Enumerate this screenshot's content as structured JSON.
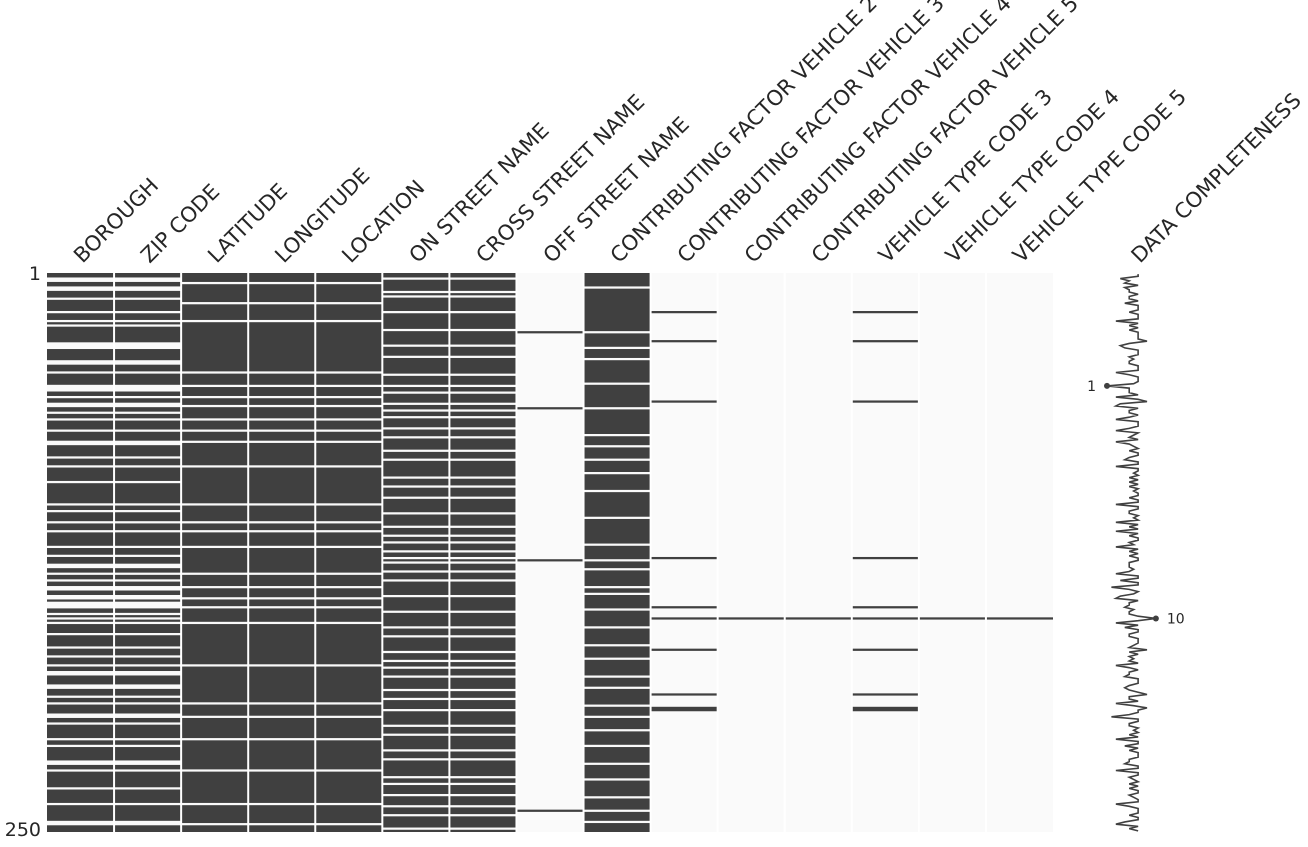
{
  "chart_data": {
    "type": "heatmap",
    "title": "",
    "row_start_label": "1",
    "row_end_label": "250",
    "n_rows": 250,
    "colors": {
      "present": "#404040",
      "missing": "#fafafa",
      "separator": "#ffffff",
      "text": "#262626"
    },
    "columns": [
      {
        "name": "BOROUGH",
        "missing_rows": [
          3,
          4,
          7,
          8,
          12,
          18,
          22,
          24,
          32,
          33,
          34,
          40,
          41,
          45,
          51,
          52,
          53,
          56,
          59,
          60,
          63,
          66,
          71,
          76,
          77,
          83,
          87,
          94,
          104,
          107,
          112,
          116,
          123,
          127,
          131,
          132,
          135,
          138,
          141,
          142,
          145,
          146,
          148,
          149,
          150,
          153,
          155,
          157,
          162,
          168,
          172,
          176,
          179,
          180,
          185,
          186,
          190,
          193,
          198,
          199,
          202,
          209,
          212,
          219,
          220,
          223,
          231,
          238,
          246,
          247
        ]
      },
      {
        "name": "ZIP CODE",
        "missing_rows": [
          3,
          4,
          7,
          8,
          12,
          18,
          22,
          24,
          32,
          33,
          34,
          40,
          41,
          45,
          51,
          52,
          53,
          56,
          59,
          60,
          63,
          66,
          71,
          76,
          77,
          83,
          87,
          94,
          104,
          107,
          112,
          116,
          123,
          127,
          131,
          132,
          135,
          138,
          141,
          142,
          145,
          146,
          148,
          149,
          150,
          153,
          155,
          157,
          162,
          168,
          172,
          176,
          179,
          180,
          185,
          186,
          190,
          193,
          198,
          199,
          202,
          209,
          212,
          219,
          220,
          223,
          231,
          238,
          246,
          247
        ]
      },
      {
        "name": "LATITUDE",
        "missing_rows": [
          5,
          14,
          22,
          45,
          51,
          56,
          60,
          66,
          71,
          76,
          87,
          104,
          112,
          116,
          123,
          135,
          141,
          146,
          150,
          157,
          176,
          193,
          199,
          209,
          223,
          238,
          247
        ]
      },
      {
        "name": "LONGITUDE",
        "missing_rows": [
          5,
          14,
          22,
          45,
          51,
          56,
          60,
          66,
          71,
          76,
          87,
          104,
          112,
          116,
          123,
          135,
          141,
          146,
          150,
          157,
          176,
          193,
          199,
          209,
          223,
          238,
          247
        ]
      },
      {
        "name": "LOCATION",
        "missing_rows": [
          5,
          14,
          22,
          45,
          51,
          56,
          60,
          66,
          71,
          76,
          87,
          104,
          112,
          116,
          123,
          135,
          141,
          146,
          150,
          157,
          176,
          193,
          199,
          209,
          223,
          238,
          247
        ]
      },
      {
        "name": "ON STREET NAME",
        "missing_rows": [
          3,
          9,
          11,
          18,
          26,
          33,
          38,
          46,
          51,
          54,
          59,
          62,
          65,
          70,
          74,
          80,
          84,
          92,
          96,
          101,
          108,
          114,
          118,
          121,
          125,
          128,
          130,
          134,
          138,
          145,
          152,
          159,
          163,
          170,
          174,
          177,
          181,
          187,
          191,
          196,
          203,
          207,
          214,
          218,
          226,
          229,
          234,
          239,
          243,
          249
        ]
      },
      {
        "name": "CROSS STREET NAME",
        "missing_rows": [
          3,
          9,
          11,
          18,
          26,
          33,
          38,
          46,
          51,
          54,
          59,
          62,
          65,
          70,
          74,
          80,
          84,
          92,
          96,
          101,
          108,
          114,
          118,
          121,
          125,
          128,
          130,
          134,
          138,
          145,
          152,
          159,
          163,
          170,
          174,
          177,
          181,
          187,
          191,
          196,
          203,
          207,
          214,
          218,
          226,
          229,
          234,
          239,
          243,
          249
        ]
      },
      {
        "name": "OFF STREET NAME",
        "present_rows": [
          27,
          61,
          129,
          241
        ]
      },
      {
        "name": "CONTRIBUTING FACTOR VEHICLE 2",
        "missing_rows": [
          7,
          27,
          34,
          39,
          50,
          61,
          73,
          78,
          84,
          90,
          98,
          110,
          122,
          129,
          133,
          141,
          144,
          151,
          159,
          167,
          173,
          181,
          186,
          194,
          199,
          205,
          212,
          220,
          227,
          235,
          241,
          246
        ]
      },
      {
        "name": "CONTRIBUTING FACTOR VEHICLE 3",
        "present_rows": [
          18,
          31,
          58,
          128,
          150,
          155,
          169,
          189,
          195,
          196
        ]
      },
      {
        "name": "CONTRIBUTING FACTOR VEHICLE 4",
        "present_rows": [
          155
        ]
      },
      {
        "name": "CONTRIBUTING FACTOR VEHICLE 5",
        "present_rows": [
          155
        ]
      },
      {
        "name": "VEHICLE TYPE CODE 3",
        "present_rows": [
          18,
          31,
          58,
          128,
          150,
          155,
          169,
          189,
          195,
          196
        ]
      },
      {
        "name": "VEHICLE TYPE CODE 4",
        "present_rows": [
          155
        ]
      },
      {
        "name": "VEHICLE TYPE CODE 5",
        "present_rows": [
          155
        ]
      }
    ],
    "sparkline": {
      "label": "DATA COMPLETENESS",
      "min_label": "1",
      "max_label": "10",
      "min_value": 1,
      "max_value": 10
    }
  }
}
